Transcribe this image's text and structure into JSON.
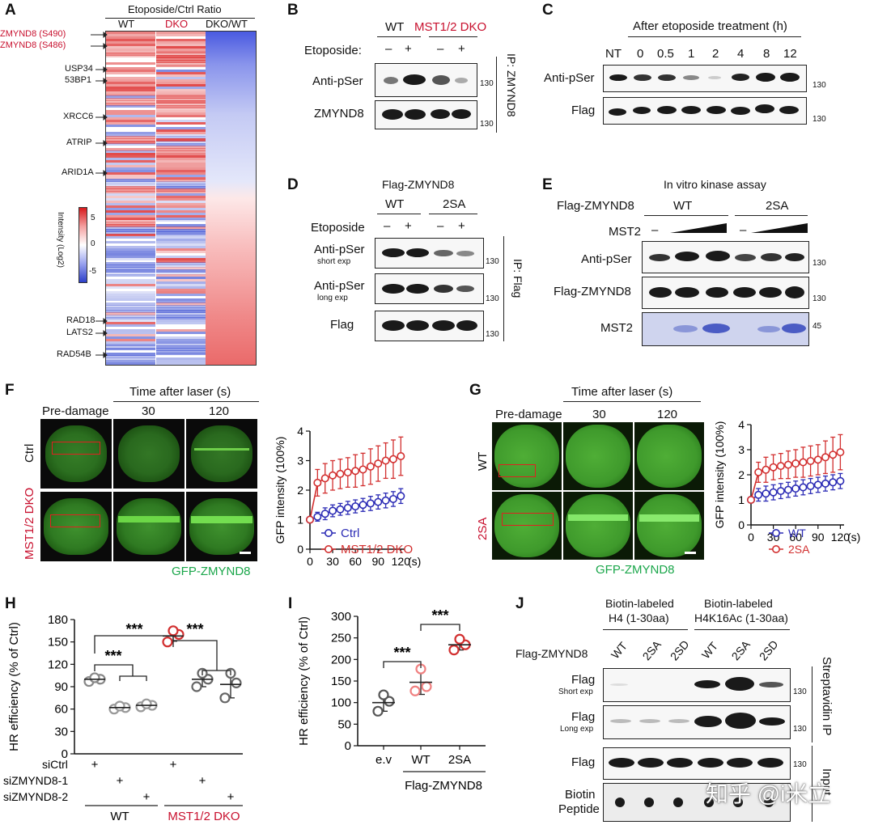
{
  "panelA": {
    "label": "A",
    "title": "Etoposide/Ctrl Ratio",
    "columns": [
      "WT",
      "DKO",
      "DKO/WT"
    ],
    "genes": [
      "ZMYND8 (S490)",
      "ZMYND8 (S486)",
      "USP34",
      "53BP1",
      "XRCC6",
      "ATRIP",
      "ARID1A",
      "RAD18",
      "LATS2",
      "RAD54B"
    ],
    "colorbar": {
      "title": "Intensity (Log2)",
      "ticks": [
        "5",
        "0",
        "-5"
      ],
      "max_color": "#d7191c",
      "min_color": "#2c3fc9"
    }
  },
  "panelB": {
    "label": "B",
    "groups": [
      "WT",
      "MST1/2 DKO"
    ],
    "etoposide_label": "Etoposide:",
    "lanes": [
      "–",
      "+",
      "–",
      "+"
    ],
    "rows": [
      "Anti-pSer",
      "ZMYND8"
    ],
    "markers": [
      "130",
      "130"
    ],
    "ip_label": "IP: ZMYND8"
  },
  "panelC": {
    "label": "C",
    "title": "After etoposide treatment (h)",
    "lanes": [
      "NT",
      "0",
      "0.5",
      "1",
      "2",
      "4",
      "8",
      "12"
    ],
    "rows": [
      "Anti-pSer",
      "Flag"
    ],
    "markers": [
      "130",
      "130"
    ]
  },
  "panelD": {
    "label": "D",
    "title": "Flag-ZMYND8",
    "groups": [
      "WT",
      "2SA"
    ],
    "etoposide_label": "Etoposide",
    "lanes": [
      "–",
      "+",
      "–",
      "+"
    ],
    "rows": [
      {
        "name": "Anti-pSer",
        "sub": "short exp"
      },
      {
        "name": "Anti-pSer",
        "sub": "long exp"
      },
      {
        "name": "Flag",
        "sub": ""
      }
    ],
    "markers": [
      "130",
      "130",
      "130"
    ],
    "ip_label": "IP: Flag"
  },
  "panelE": {
    "label": "E",
    "title": "In vitro kinase assay",
    "construct_label": "Flag-ZMYND8",
    "groups": [
      "WT",
      "2SA"
    ],
    "mst2_label": "MST2",
    "minus": [
      "–",
      "–"
    ],
    "rows": [
      "Anti-pSer",
      "Flag-ZMYND8",
      "MST2"
    ],
    "markers": [
      "130",
      "130",
      "45"
    ]
  },
  "panelF": {
    "label": "F",
    "time_title": "Time after laser (s)",
    "cols": [
      "Pre-damage",
      "30",
      "120"
    ],
    "rows": [
      "Ctrl",
      "MST1/2 DKO"
    ],
    "caption": "GFP-ZMYND8"
  },
  "panelG": {
    "label": "G",
    "time_title": "Time after laser (s)",
    "cols": [
      "Pre-damage",
      "30",
      "120"
    ],
    "rows": [
      "WT",
      "2SA"
    ],
    "caption": "GFP-ZMYND8"
  },
  "panelH": {
    "label": "H",
    "stars": [
      "***",
      "***",
      "***"
    ],
    "row_labels": [
      "siCtrl",
      "siZMYND8-1",
      "siZMYND8-2"
    ],
    "pluses": [
      "+",
      "+",
      "+",
      "+",
      "+",
      "+"
    ],
    "groups": [
      "WT",
      "MST1/2 DKO"
    ]
  },
  "panelI": {
    "label": "I",
    "stars": [
      "***",
      "***"
    ],
    "caption": "Flag-ZMYND8"
  },
  "panelJ": {
    "label": "J",
    "group1": [
      "Biotin-labeled",
      "H4 (1-30aa)"
    ],
    "group2": [
      "Biotin-labeled",
      "H4K16Ac (1-30aa)"
    ],
    "construct_label": "Flag-ZMYND8",
    "lanes": [
      "WT",
      "2SA",
      "2SD",
      "WT",
      "2SA",
      "2SD"
    ],
    "rows": [
      {
        "name": "Flag",
        "sub": "Short exp"
      },
      {
        "name": "Flag",
        "sub": "Long exp"
      },
      {
        "name": "Flag",
        "sub": ""
      },
      {
        "name": "Biotin",
        "sub": "Peptide"
      }
    ],
    "markers": [
      "130",
      "130",
      "130"
    ],
    "side_labels": [
      "Streptavidin IP",
      "Input"
    ]
  },
  "watermark": "知乎 @i米立",
  "colors": {
    "red": "#c8102e",
    "blue": "#2b2bb5",
    "green": "#1aa64a",
    "pink": "#f08080"
  },
  "chart_data": [
    {
      "type": "line",
      "panel": "F",
      "xlabel": "(s)",
      "ylabel": "GFP intensity (100%)",
      "xticks": [
        "0",
        "30",
        "60",
        "90",
        "120"
      ],
      "yticks": [
        "0",
        "1",
        "2",
        "3",
        "4"
      ],
      "xlim": [
        0,
        125
      ],
      "ylim": [
        0,
        4
      ],
      "x": [
        0,
        10,
        20,
        30,
        40,
        50,
        60,
        70,
        80,
        90,
        100,
        110,
        120
      ],
      "series": [
        {
          "name": "Ctrl",
          "color": "#2b2bb5",
          "values": [
            1.0,
            1.1,
            1.2,
            1.3,
            1.35,
            1.4,
            1.45,
            1.5,
            1.55,
            1.6,
            1.65,
            1.7,
            1.8
          ],
          "err": [
            0,
            0.15,
            0.2,
            0.2,
            0.2,
            0.22,
            0.22,
            0.22,
            0.24,
            0.24,
            0.25,
            0.25,
            0.25
          ]
        },
        {
          "name": "MST1/2 DKO",
          "color": "#d22f2f",
          "values": [
            1.0,
            2.25,
            2.4,
            2.5,
            2.55,
            2.6,
            2.65,
            2.7,
            2.8,
            2.9,
            3.0,
            3.05,
            3.15
          ],
          "err": [
            0,
            0.45,
            0.5,
            0.5,
            0.5,
            0.5,
            0.55,
            0.55,
            0.6,
            0.6,
            0.6,
            0.65,
            0.65
          ]
        }
      ]
    },
    {
      "type": "line",
      "panel": "G",
      "xlabel": "(s)",
      "ylabel": "GFP intensity (100%)",
      "xticks": [
        "0",
        "30",
        "60",
        "90",
        "120"
      ],
      "yticks": [
        "0",
        "1",
        "2",
        "3",
        "4"
      ],
      "xlim": [
        0,
        125
      ],
      "ylim": [
        0,
        4
      ],
      "x": [
        0,
        10,
        20,
        30,
        40,
        50,
        60,
        70,
        80,
        90,
        100,
        110,
        120
      ],
      "series": [
        {
          "name": "WT",
          "color": "#2b2bb5",
          "values": [
            1.0,
            1.2,
            1.25,
            1.3,
            1.35,
            1.4,
            1.45,
            1.5,
            1.55,
            1.6,
            1.65,
            1.7,
            1.75
          ],
          "err": [
            0,
            0.25,
            0.3,
            0.3,
            0.3,
            0.3,
            0.3,
            0.3,
            0.3,
            0.3,
            0.3,
            0.3,
            0.3
          ]
        },
        {
          "name": "2SA",
          "color": "#d22f2f",
          "values": [
            1.0,
            2.1,
            2.2,
            2.3,
            2.35,
            2.4,
            2.45,
            2.5,
            2.55,
            2.6,
            2.7,
            2.8,
            2.9
          ],
          "err": [
            0,
            0.4,
            0.5,
            0.5,
            0.5,
            0.55,
            0.55,
            0.6,
            0.6,
            0.6,
            0.65,
            0.7,
            0.7
          ]
        }
      ]
    },
    {
      "type": "scatter",
      "panel": "H",
      "ylabel": "HR efficiency (% of Ctrl)",
      "yticks": [
        "0",
        "30",
        "60",
        "90",
        "120",
        "150",
        "180"
      ],
      "ylim": [
        0,
        180
      ],
      "groups": [
        {
          "points": [
            97,
            100,
            102
          ],
          "mean": 100,
          "sd": 3,
          "color": "#888888"
        },
        {
          "points": [
            60,
            62,
            64
          ],
          "mean": 62,
          "sd": 3,
          "color": "#999999"
        },
        {
          "points": [
            63,
            65,
            67
          ],
          "mean": 65,
          "sd": 3,
          "color": "#999999"
        },
        {
          "points": [
            150,
            160,
            165
          ],
          "mean": 158,
          "sd": 7,
          "color": "#d22f2f"
        },
        {
          "points": [
            90,
            100,
            108
          ],
          "mean": 100,
          "sd": 10,
          "color": "#666666"
        },
        {
          "points": [
            75,
            95,
            108
          ],
          "mean": 93,
          "sd": 18,
          "color": "#666666"
        }
      ]
    },
    {
      "type": "scatter",
      "panel": "I",
      "ylabel": "HR efficiency (% of Ctrl)",
      "yticks": [
        "0",
        "50",
        "100",
        "150",
        "200",
        "250",
        "300"
      ],
      "ylim": [
        0,
        300
      ],
      "categories": [
        "e.v",
        "WT",
        "2SA"
      ],
      "groups": [
        {
          "points": [
            80,
            103,
            118
          ],
          "mean": 100,
          "sd": 20,
          "color": "#555555"
        },
        {
          "points": [
            127,
            137,
            178
          ],
          "mean": 147,
          "sd": 28,
          "color": "#f08080"
        },
        {
          "points": [
            222,
            234,
            247
          ],
          "mean": 234,
          "sd": 12,
          "color": "#d22f2f"
        }
      ]
    }
  ]
}
